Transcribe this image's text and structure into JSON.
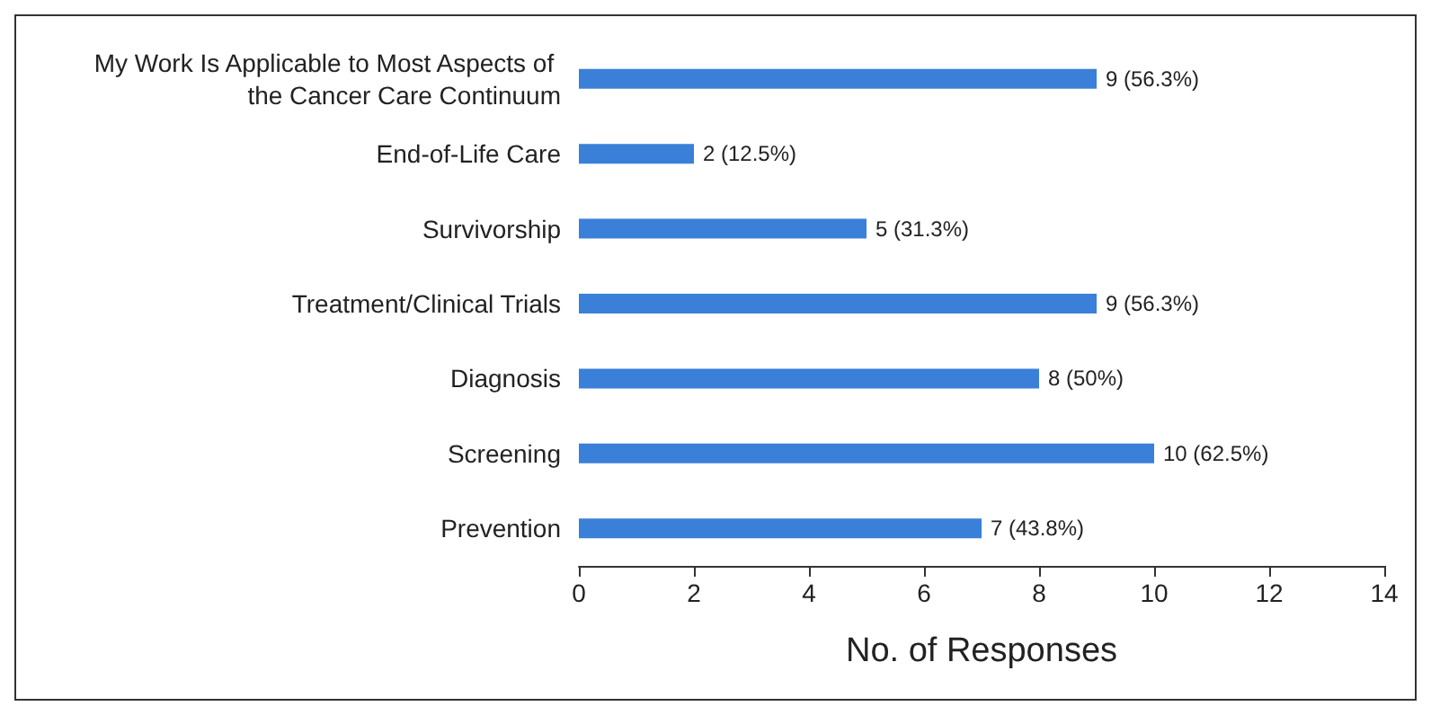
{
  "chart_data": {
    "type": "bar",
    "orientation": "horizontal",
    "xlabel": "No. of Responses",
    "categories": [
      "My Work Is Applicable to Most Aspects of the Cancer Care Continuum",
      "End-of-Life Care",
      "Survivorship",
      "Treatment/Clinical Trials",
      "Diagnosis",
      "Screening",
      "Prevention"
    ],
    "values": [
      9,
      2,
      5,
      9,
      8,
      10,
      7
    ],
    "value_labels": [
      "9 (56.3%)",
      "2 (12.5%)",
      "5 (31.3%)",
      "9 (56.3%)",
      "8 (50%)",
      "10 (62.5%)",
      "7 (43.8%)"
    ],
    "color": "#3a80d8",
    "xlim": [
      0,
      14
    ],
    "xticks": [
      0,
      2,
      4,
      6,
      8,
      10,
      12,
      14
    ],
    "grid": false
  }
}
